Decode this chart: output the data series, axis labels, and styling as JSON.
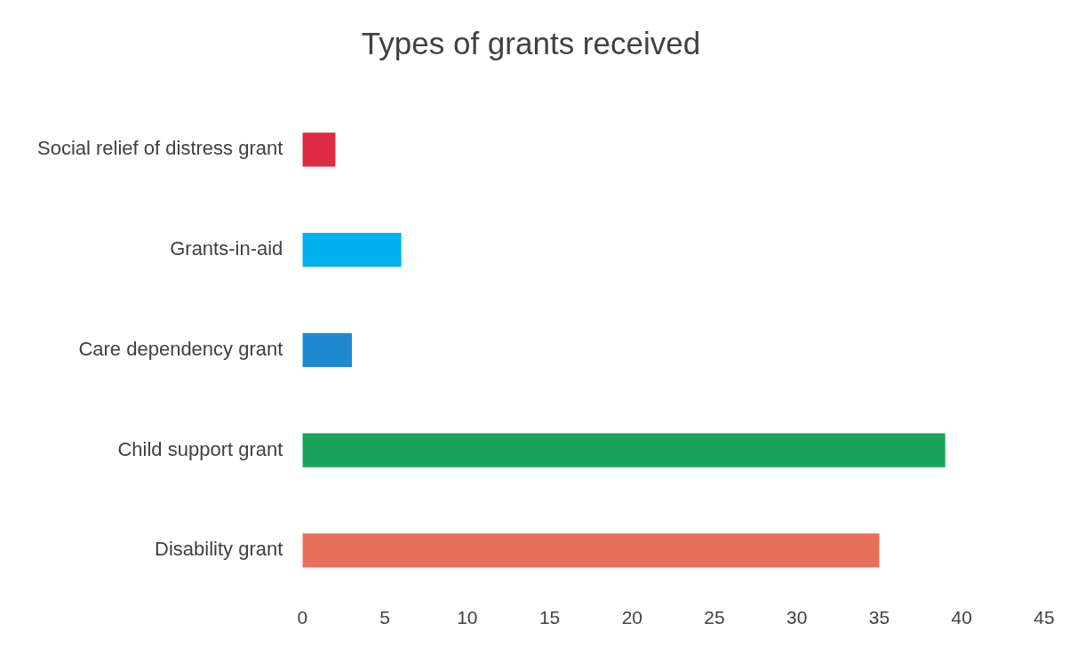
{
  "chart_data": {
    "type": "bar",
    "orientation": "horizontal",
    "title": "Types of grants received",
    "categories": [
      "Social relief of distress grant",
      "Grants-in-aid",
      "Care dependency grant",
      "Child support grant",
      "Disability grant"
    ],
    "values": [
      2,
      6,
      3,
      39,
      35
    ],
    "colors": [
      "#dc2a45",
      "#00b0f0",
      "#1e88d0",
      "#1aa35a",
      "#e8705a"
    ],
    "xlim": [
      0,
      45
    ],
    "xticks": [
      0,
      5,
      10,
      15,
      20,
      25,
      30,
      35,
      40,
      45
    ],
    "grid": false,
    "legend": false
  }
}
